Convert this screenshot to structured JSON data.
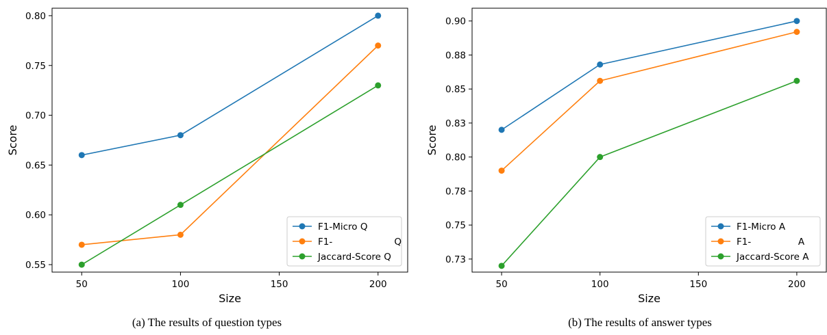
{
  "chart_data": [
    {
      "type": "line",
      "caption": "(a)  The results of question types",
      "xlabel": "Size",
      "ylabel": "Score",
      "x": [
        50,
        100,
        200
      ],
      "xlim": [
        35,
        215
      ],
      "ylim": [
        0.5425,
        0.8075
      ],
      "xticks": [
        50,
        100,
        150,
        200
      ],
      "xtick_labels": [
        "50",
        "100",
        "150",
        "200"
      ],
      "yticks": [
        0.55,
        0.6,
        0.65,
        0.7,
        0.75,
        0.8
      ],
      "ytick_labels": [
        "0.55",
        "0.60",
        "0.65",
        "0.70",
        "0.75",
        "0.80"
      ],
      "legend_position": "lower-right",
      "series": [
        {
          "name": "F1-Micro Q",
          "color": "#1f77b4",
          "values": [
            0.66,
            0.68,
            0.8
          ]
        },
        {
          "name": "F1-                     Q",
          "color": "#ff7f0e",
          "values": [
            0.57,
            0.58,
            0.77
          ]
        },
        {
          "name": "Jaccard-Score Q",
          "color": "#2ca02c",
          "values": [
            0.55,
            0.61,
            0.73
          ]
        }
      ]
    },
    {
      "type": "line",
      "caption": "(b)  The results of answer types",
      "xlabel": "Size",
      "ylabel": "Score",
      "x": [
        50,
        100,
        200
      ],
      "xlim": [
        35,
        215
      ],
      "ylim": [
        0.7154,
        0.9094
      ],
      "xticks": [
        50,
        100,
        150,
        200
      ],
      "xtick_labels": [
        "50",
        "100",
        "150",
        "200"
      ],
      "yticks": [
        0.725,
        0.75,
        0.775,
        0.8,
        0.825,
        0.85,
        0.875,
        0.9
      ],
      "ytick_labels": [
        "0.73",
        "0.75",
        "0.78",
        "0.80",
        "0.83",
        "0.85",
        "0.88",
        "0.90"
      ],
      "legend_position": "lower-right",
      "series": [
        {
          "name": "F1-Micro A",
          "color": "#1f77b4",
          "values": [
            0.82,
            0.868,
            0.9
          ]
        },
        {
          "name": "F1-                A",
          "color": "#ff7f0e",
          "values": [
            0.79,
            0.856,
            0.892
          ]
        },
        {
          "name": "Jaccard-Score A",
          "color": "#2ca02c",
          "values": [
            0.72,
            0.8,
            0.856
          ]
        }
      ]
    }
  ]
}
